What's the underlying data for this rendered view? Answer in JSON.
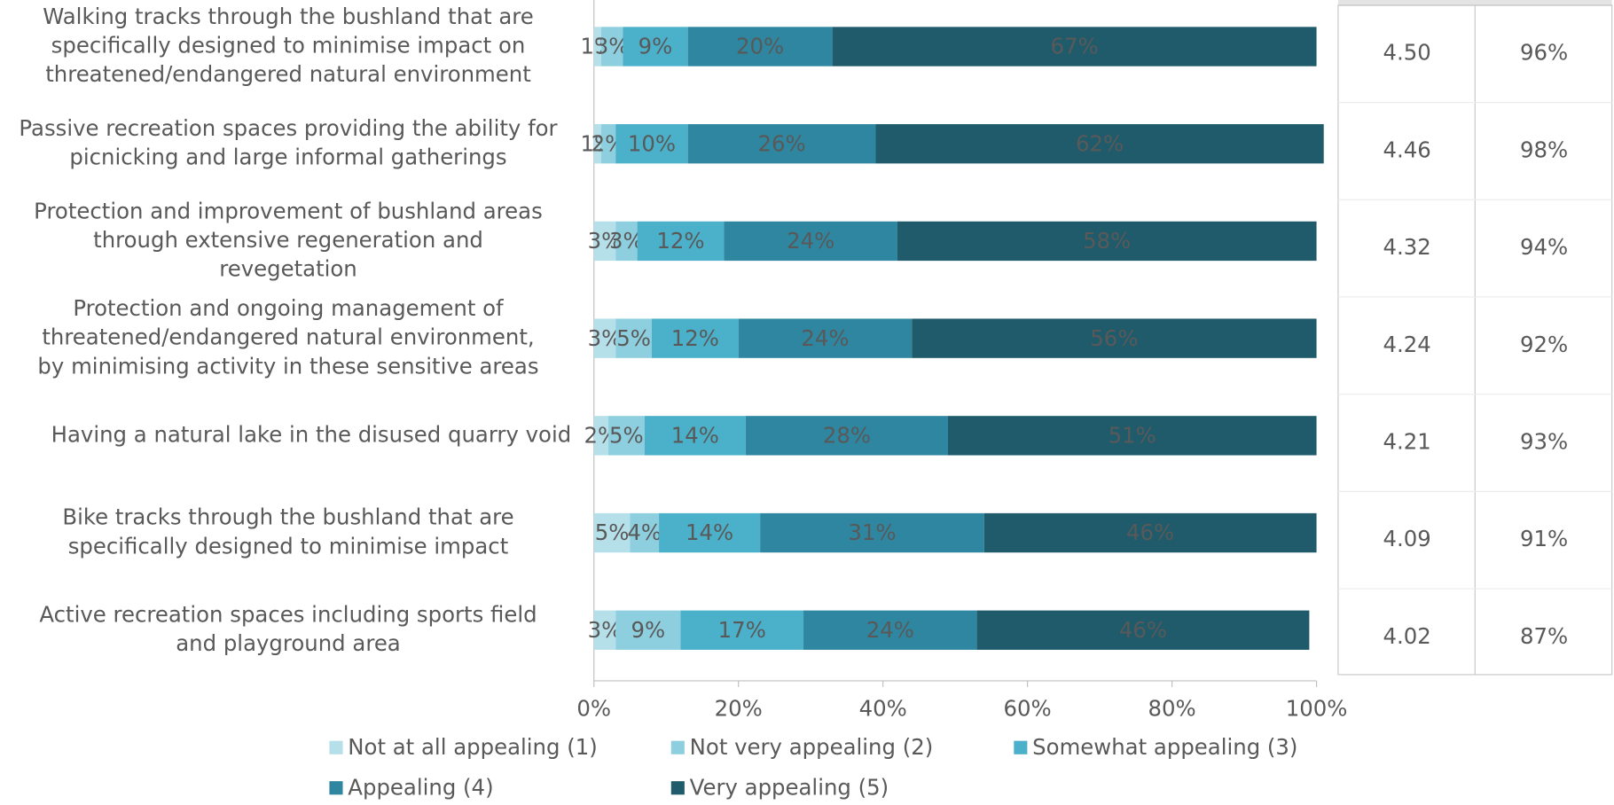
{
  "chart_data": {
    "type": "stacked_barh",
    "categories": [
      "Walking tracks through the bushland that are\nspecifically designed to minimise impact on\nthreatened/endangered natural environment",
      "Passive recreation spaces providing the ability for\npicnicking and large informal gatherings",
      "Protection and improvement of bushland areas\nthrough extensive regeneration and\nrevegetation",
      "Protection and ongoing management of\nthreatened/endangered natural environment,\nby minimising activity in these sensitive areas",
      "Having a natural lake in the disused quarry void",
      "Bike tracks through the bushland that are\nspecifically designed to minimise impact",
      "Active recreation spaces including sports field\nand playground area"
    ],
    "series": [
      {
        "name": "Not at all appealing (1)",
        "color": "#b5dfe9",
        "values": [
          1,
          1,
          3,
          3,
          2,
          5,
          3
        ],
        "value_labels": [
          "1%",
          "1%",
          "3%",
          "3%",
          "2%",
          "5%",
          "3%"
        ]
      },
      {
        "name": "Not very appealing (2)",
        "color": "#8ecfdf",
        "values": [
          3,
          2,
          3,
          5,
          5,
          4,
          9
        ],
        "value_labels": [
          "3%",
          "2%",
          "3%",
          "5%",
          "5%",
          "4%",
          "9%"
        ]
      },
      {
        "name": "Somewhat appealing (3)",
        "color": "#4bb0c9",
        "values": [
          9,
          10,
          12,
          12,
          14,
          14,
          17
        ],
        "value_labels": [
          "9%",
          "10%",
          "12%",
          "12%",
          "14%",
          "14%",
          "17%"
        ]
      },
      {
        "name": "Appealing (4)",
        "color": "#2e86a0",
        "values": [
          20,
          26,
          24,
          24,
          28,
          31,
          24
        ],
        "value_labels": [
          "20%",
          "26%",
          "24%",
          "24%",
          "28%",
          "31%",
          "24%"
        ]
      },
      {
        "name": "Very appealing (5)",
        "color": "#1f5b6b",
        "values": [
          67,
          62,
          58,
          56,
          51,
          46,
          46
        ],
        "value_labels": [
          "67%",
          "62%",
          "58%",
          "56%",
          "51%",
          "46%",
          "46%"
        ]
      }
    ],
    "xlim": [
      0,
      100
    ],
    "xticks": [
      {
        "value": 0,
        "label": "0%"
      },
      {
        "value": 20,
        "label": "20%"
      },
      {
        "value": 40,
        "label": "40%"
      },
      {
        "value": 60,
        "label": "60%"
      },
      {
        "value": 80,
        "label": "80%"
      },
      {
        "value": 100,
        "label": "100%"
      }
    ],
    "table_rows": [
      [
        "4.50",
        "96%"
      ],
      [
        "4.46",
        "98%"
      ],
      [
        "4.32",
        "94%"
      ],
      [
        "4.24",
        "92%"
      ],
      [
        "4.21",
        "93%"
      ],
      [
        "4.09",
        "91%"
      ],
      [
        "4.02",
        "87%"
      ]
    ]
  }
}
